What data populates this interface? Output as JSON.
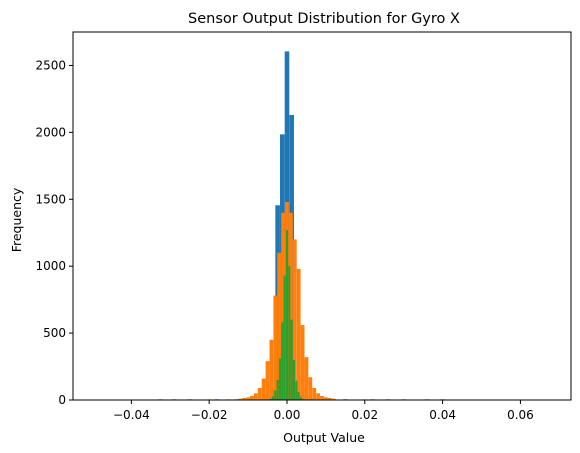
{
  "chart_data": {
    "type": "bar",
    "title": "Sensor Output Distribution for Gyro X",
    "xlabel": "Output Value",
    "ylabel": "Frequency",
    "xlim": [
      -0.055,
      0.073
    ],
    "ylim": [
      0,
      2750
    ],
    "xticks": [
      -0.04,
      -0.02,
      0.0,
      0.02,
      0.04,
      0.06
    ],
    "xtick_labels": [
      "−0.04",
      "−0.02",
      "0.00",
      "0.02",
      "0.04",
      "0.06"
    ],
    "yticks": [
      0,
      500,
      1000,
      1500,
      2000,
      2500
    ],
    "ytick_labels": [
      "0",
      "500",
      "1000",
      "1500",
      "2000",
      "2500"
    ],
    "grid": false,
    "series": [
      {
        "color": "#1f77b4",
        "bin_width": 0.00118,
        "bins": [
          {
            "x": -0.0325,
            "y": 5
          },
          {
            "x": -0.029,
            "y": 5
          },
          {
            "x": -0.025,
            "y": 5
          },
          {
            "x": -0.018,
            "y": 5
          },
          {
            "x": -0.013,
            "y": 5
          },
          {
            "x": -0.009,
            "y": 5
          },
          {
            "x": -0.006,
            "y": 10
          },
          {
            "x": -0.0048,
            "y": 20
          },
          {
            "x": -0.0036,
            "y": 80
          },
          {
            "x": -0.0024,
            "y": 1455
          },
          {
            "x": -0.0012,
            "y": 1985
          },
          {
            "x": 0.0,
            "y": 2605
          },
          {
            "x": 0.0012,
            "y": 2130
          },
          {
            "x": 0.0024,
            "y": 150
          },
          {
            "x": 0.0036,
            "y": 30
          },
          {
            "x": 0.006,
            "y": 10
          },
          {
            "x": 0.01,
            "y": 5
          },
          {
            "x": 0.015,
            "y": 5
          },
          {
            "x": 0.022,
            "y": 5
          },
          {
            "x": 0.026,
            "y": 5
          },
          {
            "x": 0.03,
            "y": 5
          },
          {
            "x": 0.036,
            "y": 5
          },
          {
            "x": 0.04,
            "y": 5
          }
        ]
      },
      {
        "color": "#ff7f0e",
        "bin_width": 0.00098,
        "bins": [
          {
            "x": -0.031,
            "y": 3
          },
          {
            "x": -0.02,
            "y": 5
          },
          {
            "x": -0.015,
            "y": 5
          },
          {
            "x": -0.012,
            "y": 10
          },
          {
            "x": -0.011,
            "y": 15
          },
          {
            "x": -0.01,
            "y": 20
          },
          {
            "x": -0.009,
            "y": 30
          },
          {
            "x": -0.008,
            "y": 50
          },
          {
            "x": -0.007,
            "y": 90
          },
          {
            "x": -0.006,
            "y": 160
          },
          {
            "x": -0.005,
            "y": 290
          },
          {
            "x": -0.004,
            "y": 450
          },
          {
            "x": -0.003,
            "y": 780
          },
          {
            "x": -0.002,
            "y": 1100
          },
          {
            "x": -0.001,
            "y": 1400
          },
          {
            "x": 0.0,
            "y": 1480
          },
          {
            "x": 0.001,
            "y": 1400
          },
          {
            "x": 0.002,
            "y": 1200
          },
          {
            "x": 0.003,
            "y": 980
          },
          {
            "x": 0.004,
            "y": 560
          },
          {
            "x": 0.005,
            "y": 320
          },
          {
            "x": 0.006,
            "y": 170
          },
          {
            "x": 0.007,
            "y": 90
          },
          {
            "x": 0.008,
            "y": 50
          },
          {
            "x": 0.009,
            "y": 30
          },
          {
            "x": 0.01,
            "y": 20
          },
          {
            "x": 0.011,
            "y": 15
          },
          {
            "x": 0.012,
            "y": 10
          },
          {
            "x": 0.015,
            "y": 5
          },
          {
            "x": 0.02,
            "y": 5
          },
          {
            "x": 0.028,
            "y": 3
          }
        ]
      },
      {
        "color": "#2ca02c",
        "bin_width": 0.00055,
        "bins": [
          {
            "x": -0.0048,
            "y": 3
          },
          {
            "x": -0.0042,
            "y": 10
          },
          {
            "x": -0.0036,
            "y": 25
          },
          {
            "x": -0.003,
            "y": 70
          },
          {
            "x": -0.0024,
            "y": 150
          },
          {
            "x": -0.0018,
            "y": 310
          },
          {
            "x": -0.0012,
            "y": 580
          },
          {
            "x": -0.0006,
            "y": 930
          },
          {
            "x": 0.0,
            "y": 1270
          },
          {
            "x": 0.0006,
            "y": 1000
          },
          {
            "x": 0.0012,
            "y": 600
          },
          {
            "x": 0.0018,
            "y": 300
          },
          {
            "x": 0.0024,
            "y": 140
          },
          {
            "x": 0.003,
            "y": 60
          },
          {
            "x": 0.0036,
            "y": 20
          },
          {
            "x": 0.0042,
            "y": 8
          },
          {
            "x": 0.0048,
            "y": 3
          }
        ]
      }
    ]
  }
}
